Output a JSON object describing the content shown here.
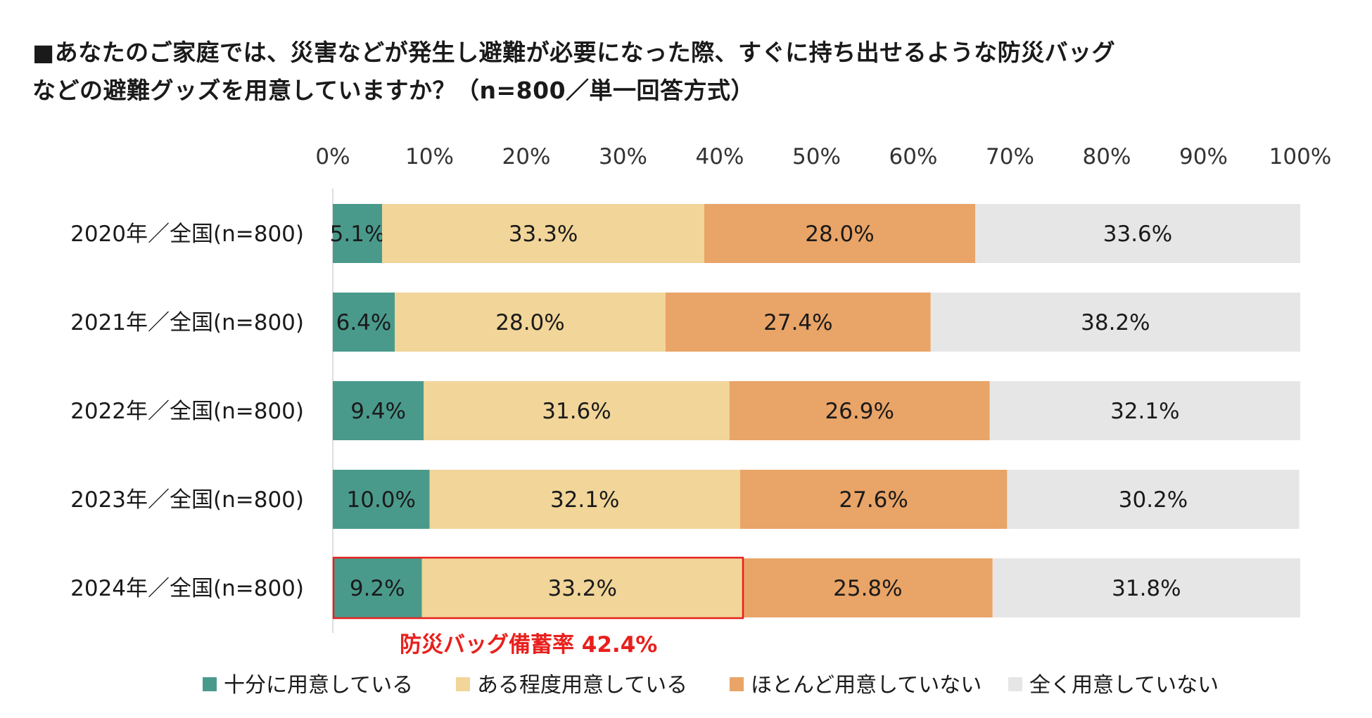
{
  "title": {
    "line1": "■あなたのご家庭では、災害などが発生し避難が必要になった際、すぐに持ち出せるような防災バッグ",
    "line2": "などの避難グッズを用意していますか？（n=800／単一回答方式）"
  },
  "chart_data": {
    "type": "bar",
    "orientation": "horizontal",
    "stacked": true,
    "xlim": [
      0,
      100
    ],
    "x_ticks": [
      "0%",
      "10%",
      "20%",
      "30%",
      "40%",
      "50%",
      "60%",
      "70%",
      "80%",
      "90%",
      "100%"
    ],
    "categories": [
      "2020年／全国(n=800)",
      "2021年／全国(n=800)",
      "2022年／全国(n=800)",
      "2023年／全国(n=800)",
      "2024年／全国(n=800)"
    ],
    "series": [
      {
        "name": "十分に用意している",
        "color": "#4a9a8c",
        "values": [
          5.1,
          6.4,
          9.4,
          10.0,
          9.2
        ],
        "labels": [
          "5.1%",
          "6.4%",
          "9.4%",
          "10.0%",
          "9.2%"
        ]
      },
      {
        "name": "ある程度用意している",
        "color": "#f1d599",
        "values": [
          33.3,
          28.0,
          31.6,
          32.1,
          33.2
        ],
        "labels": [
          "33.3%",
          "28.0%",
          "31.6%",
          "32.1%",
          "33.2%"
        ]
      },
      {
        "name": "ほとんど用意していない",
        "color": "#e9a467",
        "values": [
          28.0,
          27.4,
          26.9,
          27.6,
          25.8
        ],
        "labels": [
          "28.0%",
          "27.4%",
          "26.9%",
          "27.6%",
          "25.8%"
        ]
      },
      {
        "name": "全く用意していない",
        "color": "#e6e6e6",
        "values": [
          33.6,
          38.2,
          32.1,
          30.2,
          31.8
        ],
        "labels": [
          "33.6%",
          "38.2%",
          "32.1%",
          "30.2%",
          "31.8%"
        ]
      }
    ],
    "annotation": {
      "text": "防災バッグ備蓄率 42.4%",
      "value": 42.4,
      "category_index": 4,
      "color": "#e8201d"
    },
    "legend_position": "bottom",
    "grid": false
  }
}
